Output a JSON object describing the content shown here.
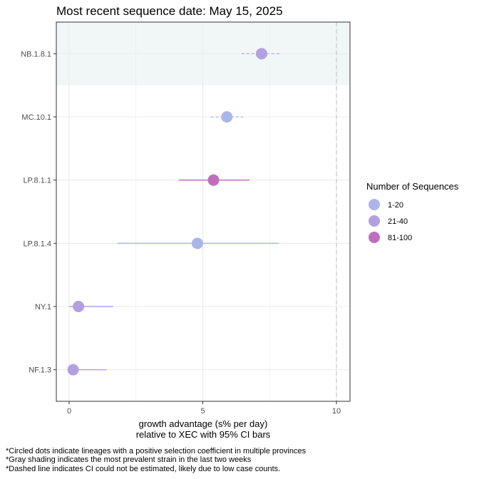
{
  "chart_data": {
    "type": "scatter",
    "title": "Most recent sequence date: May 15, 2025",
    "xlabel_line1": "growth advantage (s% per day)",
    "xlabel_line2": "relative to  XEC  with 95% CI bars",
    "xlim": [
      -0.45,
      10.5
    ],
    "x_ticks": [
      0,
      5,
      10
    ],
    "reference_line_x": 10,
    "grid": true,
    "legend": {
      "title": "Number of Sequences",
      "placement": "right",
      "entries": [
        {
          "label": "1-20",
          "color": "#aab6e8"
        },
        {
          "label": "21-40",
          "color": "#b3a0e0"
        },
        {
          "label": "81-100",
          "color": "#c06ebc"
        }
      ]
    },
    "series": [
      {
        "lineage": "NB.1.8.1",
        "value": 7.2,
        "ci": [
          6.45,
          7.95
        ],
        "group": "21-40",
        "ci_dashed": true,
        "shaded": true
      },
      {
        "lineage": "MC.10.1",
        "value": 5.9,
        "ci": [
          5.3,
          6.5
        ],
        "group": "1-20",
        "ci_dashed": true,
        "shaded": false
      },
      {
        "lineage": "LP.8.1.1",
        "value": 5.4,
        "ci": [
          4.1,
          6.75
        ],
        "group": "81-100",
        "ci_dashed": false,
        "shaded": false
      },
      {
        "lineage": "LP.8.1.4",
        "value": 4.8,
        "ci": [
          1.8,
          7.85
        ],
        "group": "1-20",
        "ci_dashed": false,
        "shaded": false
      },
      {
        "lineage": "NY.1",
        "value": 0.35,
        "ci": [
          0.0,
          1.65
        ],
        "group": "21-40",
        "ci_dashed": false,
        "shaded": false
      },
      {
        "lineage": "NF.1.3",
        "value": 0.15,
        "ci": [
          0.0,
          1.4
        ],
        "group": "21-40",
        "ci_dashed": false,
        "shaded": false
      }
    ],
    "colors": {
      "shade": "#f0f7f6",
      "grid": "#ebebeb",
      "panel_border": "#333333",
      "reference_line": "#bdbdbd"
    },
    "footnotes": [
      "*Circled dots indicate lineages with a positive selection coefficient in multiple provinces",
      "*Gray shading indicates the most prevalent strain in the last two weeks",
      "*Dashed line indicates CI could not be estimated, likely due to low case counts."
    ]
  }
}
